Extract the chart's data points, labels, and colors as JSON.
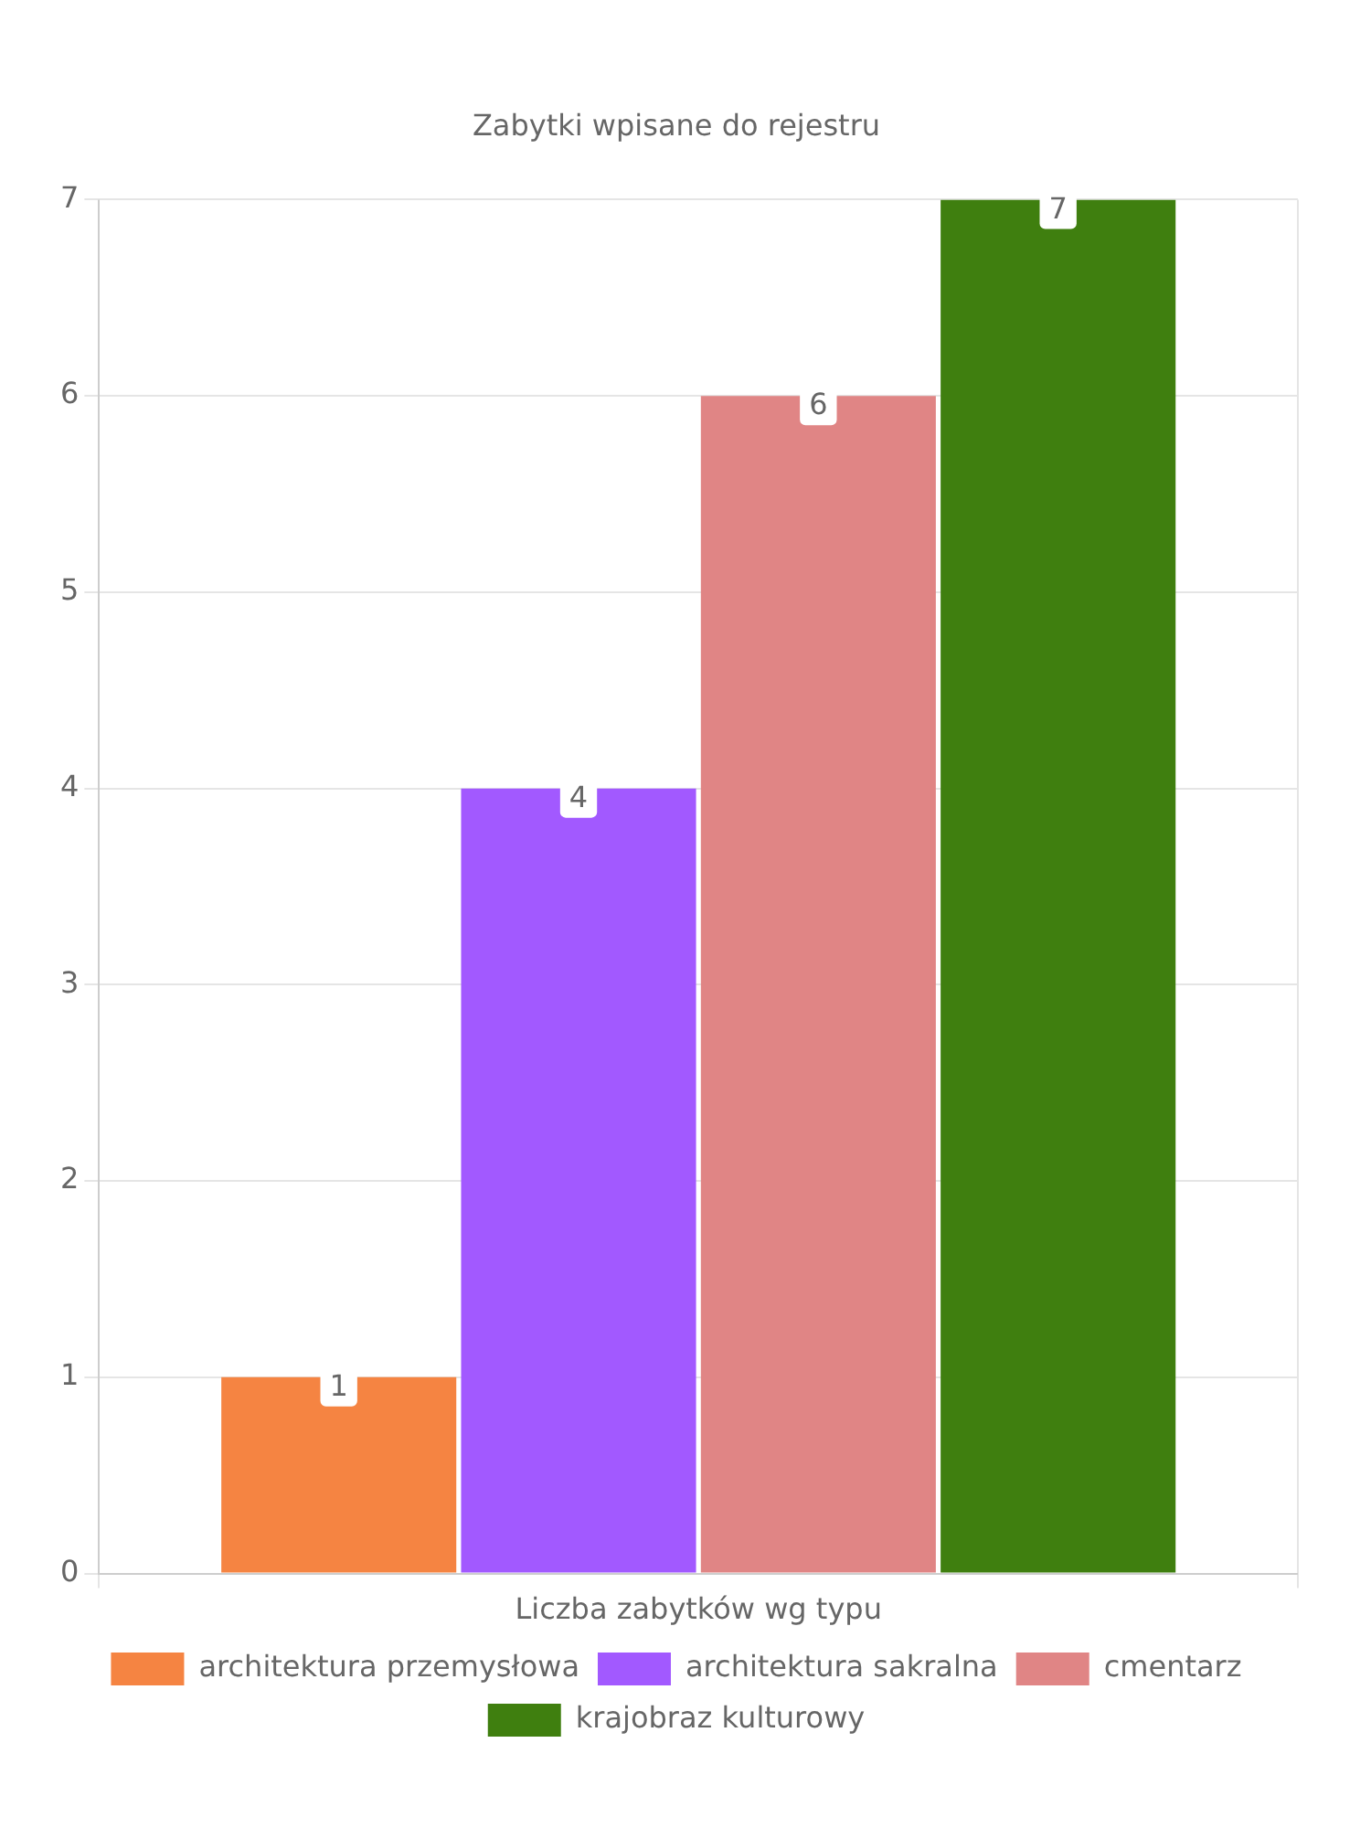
{
  "chart_data": {
    "type": "bar",
    "title": "Zabytki wpisane do rejestru",
    "categories": [
      "Liczba zabytków wg typu"
    ],
    "series": [
      {
        "name": "architektura przemysłowa",
        "color": "#f58442",
        "values": [
          1
        ]
      },
      {
        "name": "architektura sakralna",
        "color": "#a259ff",
        "values": [
          4
        ]
      },
      {
        "name": "cmentarz",
        "color": "#e08585",
        "values": [
          6
        ]
      },
      {
        "name": "krajobraz kulturowy",
        "color": "#3f7f0f",
        "values": [
          7
        ]
      }
    ],
    "ylim": [
      0,
      7
    ],
    "yticks": [
      0,
      1,
      2,
      3,
      4,
      5,
      6,
      7
    ],
    "grid": true,
    "legend": "bottom",
    "data_labels": true
  }
}
